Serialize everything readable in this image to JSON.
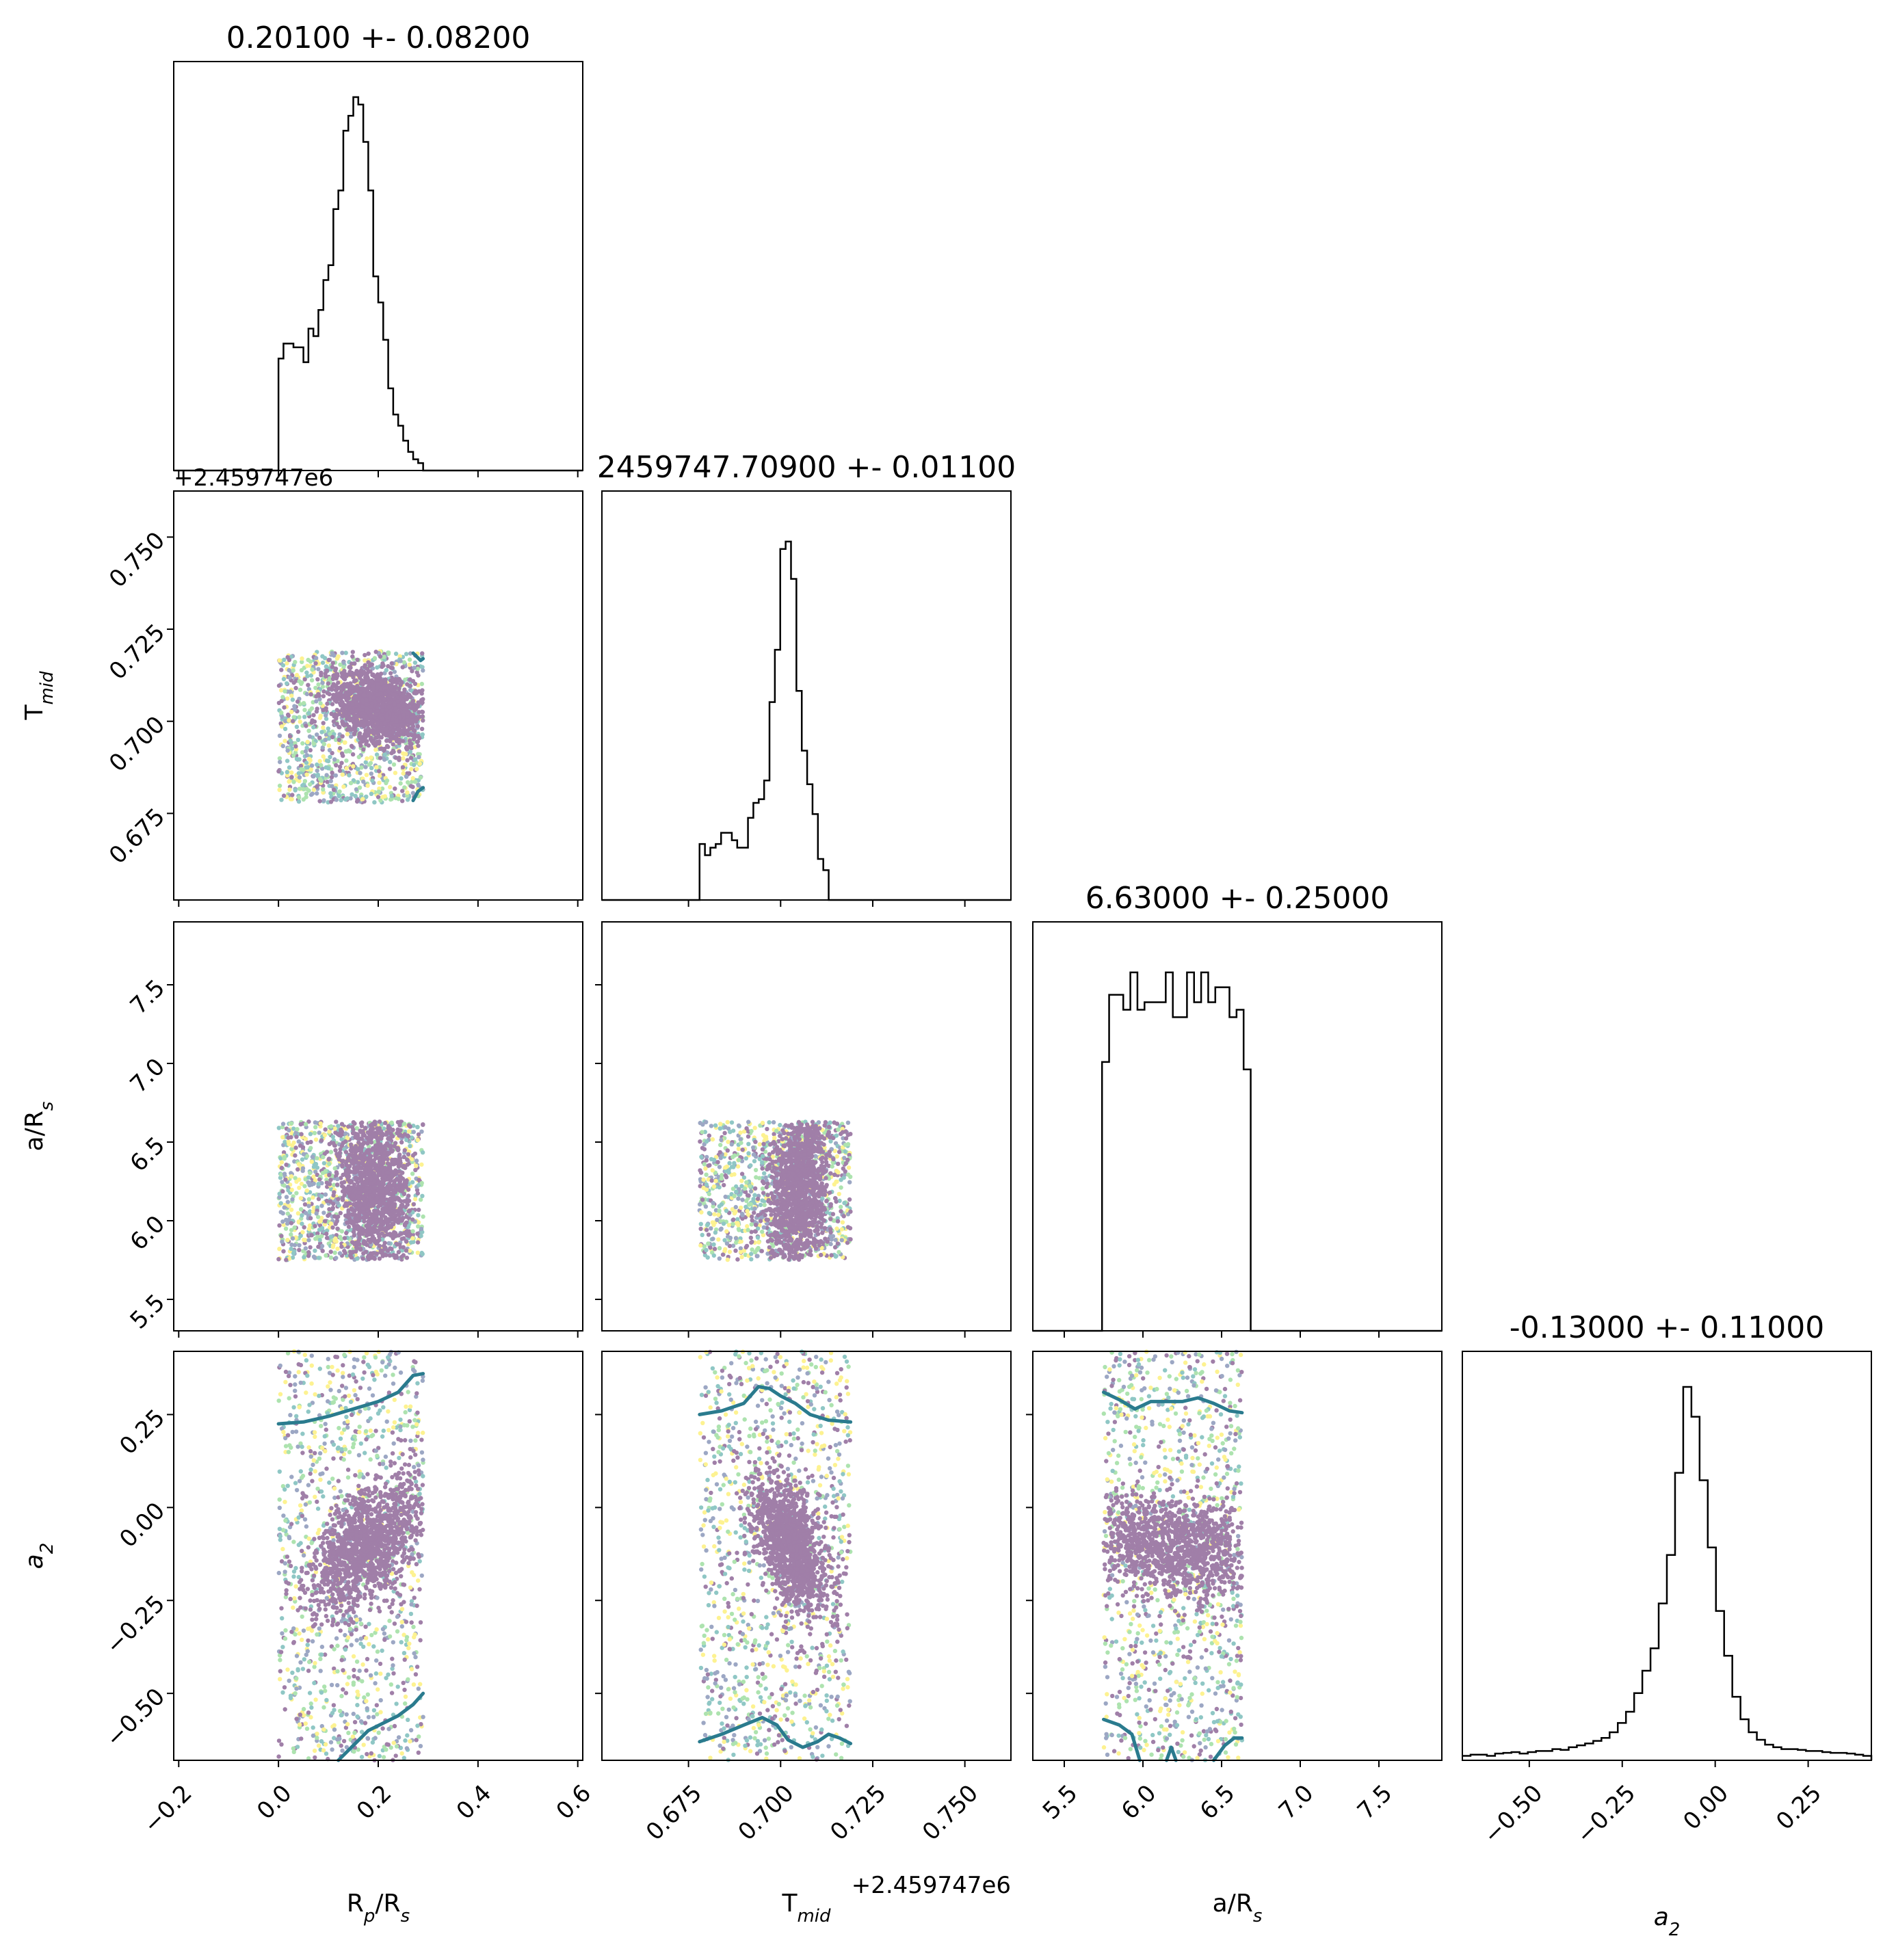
{
  "chart_data": {
    "type": "corner",
    "parameters": [
      {
        "key": "rp",
        "label": "R_p/R_s",
        "label_main": "R",
        "label_sub": "p",
        "label_tail": "/R",
        "label_sub2": "s",
        "title": "0.20100 +- 0.08200",
        "range": [
          -0.21,
          0.61
        ],
        "ticks": [
          -0.2,
          0.0,
          0.2,
          0.4,
          0.6
        ],
        "tick_labels": [
          "−0.2",
          "0.0",
          "0.2",
          "0.4",
          "0.6"
        ]
      },
      {
        "key": "tmid",
        "label": "T_mid",
        "label_main": "T",
        "label_sub": "mid",
        "label_tail": "",
        "label_sub2": "",
        "title": "2459747.70900 +- 0.01100",
        "range": [
          0.6515,
          0.7625
        ],
        "offset": "+2.459747e6",
        "ticks": [
          0.675,
          0.7,
          0.725,
          0.75
        ],
        "tick_labels": [
          "0.675",
          "0.700",
          "0.725",
          "0.750"
        ]
      },
      {
        "key": "ars",
        "label": "a/R_s",
        "label_main": "a/R",
        "label_sub": "s",
        "label_tail": "",
        "label_sub2": "",
        "title": "6.63000 +- 0.25000",
        "range": [
          5.3,
          7.9
        ],
        "ticks": [
          5.5,
          6.0,
          6.5,
          7.0,
          7.5
        ],
        "tick_labels": [
          "5.5",
          "6.0",
          "6.5",
          "7.0",
          "7.5"
        ]
      },
      {
        "key": "a2",
        "label": "a_2",
        "label_main": "a",
        "label_sub": "2",
        "label_tail": "",
        "label_sub2": "",
        "title": "-0.13000 +- 0.11000",
        "range": [
          -0.68,
          0.42
        ],
        "ticks": [
          -0.5,
          -0.25,
          0.0,
          0.25
        ],
        "tick_labels": [
          "−0.50",
          "−0.25",
          "0.00",
          "0.25"
        ]
      }
    ],
    "histograms": [
      {
        "param": "rp",
        "x_start": 0.0,
        "bin_width": 0.01,
        "counts": [
          0.3,
          0.34,
          0.34,
          0.33,
          0.33,
          0.29,
          0.38,
          0.36,
          0.43,
          0.51,
          0.55,
          0.7,
          0.75,
          0.91,
          0.95,
          1.0,
          0.98,
          0.88,
          0.75,
          0.52,
          0.45,
          0.35,
          0.22,
          0.15,
          0.12,
          0.08,
          0.05,
          0.03,
          0.02,
          0.0
        ]
      },
      {
        "param": "tmid",
        "x_start": 0.678,
        "bin_width": 0.00146,
        "counts": [
          0.15,
          0.12,
          0.14,
          0.15,
          0.18,
          0.18,
          0.16,
          0.14,
          0.14,
          0.22,
          0.26,
          0.27,
          0.32,
          0.53,
          0.67,
          0.94,
          0.96,
          0.86,
          0.56,
          0.4,
          0.31,
          0.23,
          0.11,
          0.08,
          0.0,
          0.0,
          0.0,
          0.0,
          0.0,
          0.0
        ]
      },
      {
        "param": "ars",
        "x_start": 5.74,
        "bin_width": 0.045,
        "counts": [
          0.72,
          0.9,
          0.9,
          0.86,
          0.96,
          0.86,
          0.88,
          0.88,
          0.88,
          0.96,
          0.84,
          0.84,
          0.96,
          0.88,
          0.96,
          0.88,
          0.92,
          0.92,
          0.84,
          0.86,
          0.7
        ]
      },
      {
        "param": "a2",
        "x_start": -0.68,
        "bin_width": 0.022,
        "counts": [
          0.012,
          0.015,
          0.015,
          0.012,
          0.018,
          0.02,
          0.022,
          0.018,
          0.022,
          0.025,
          0.025,
          0.03,
          0.028,
          0.035,
          0.04,
          0.045,
          0.052,
          0.06,
          0.075,
          0.1,
          0.13,
          0.18,
          0.24,
          0.3,
          0.42,
          0.55,
          0.77,
          1.0,
          0.92,
          0.75,
          0.57,
          0.4,
          0.28,
          0.17,
          0.11,
          0.075,
          0.055,
          0.042,
          0.035,
          0.03,
          0.03,
          0.028,
          0.025,
          0.025,
          0.022,
          0.02,
          0.02,
          0.018,
          0.015,
          0.012
        ]
      }
    ],
    "scatter_panels": [
      {
        "x": "rp",
        "y": "tmid",
        "x_range": [
          0.0,
          0.29
        ],
        "y_range": [
          0.678,
          0.719
        ],
        "cluster_center": [
          0.2,
          0.704
        ],
        "cluster_spread": [
          0.045,
          0.005
        ],
        "correlation": -0.3
      },
      {
        "x": "rp",
        "y": "ars",
        "x_range": [
          0.0,
          0.29
        ],
        "y_range": [
          5.75,
          6.63
        ],
        "cluster_center": [
          0.19,
          6.2
        ],
        "cluster_spread": [
          0.035,
          0.25
        ],
        "correlation": 0.0
      },
      {
        "x": "tmid",
        "y": "ars",
        "x_range": [
          0.678,
          0.719
        ],
        "y_range": [
          5.75,
          6.63
        ],
        "cluster_center": [
          0.705,
          6.2
        ],
        "cluster_spread": [
          0.004,
          0.25
        ],
        "correlation": 0.25
      },
      {
        "x": "rp",
        "y": "a2",
        "x_range": [
          0.0,
          0.29
        ],
        "y_range": [
          -0.68,
          0.42
        ],
        "cluster_center": [
          0.18,
          -0.1
        ],
        "cluster_spread": [
          0.06,
          0.09
        ],
        "correlation": 0.55
      },
      {
        "x": "tmid",
        "y": "a2",
        "x_range": [
          0.678,
          0.719
        ],
        "y_range": [
          -0.68,
          0.42
        ],
        "cluster_center": [
          0.703,
          -0.1
        ],
        "cluster_spread": [
          0.005,
          0.09
        ],
        "correlation": -0.5
      },
      {
        "x": "ars",
        "y": "a2",
        "x_range": [
          5.75,
          6.63
        ],
        "y_range": [
          -0.68,
          0.42
        ],
        "cluster_center": [
          6.2,
          -0.11
        ],
        "cluster_spread": [
          0.3,
          0.07
        ],
        "correlation": -0.2
      }
    ],
    "contour_lines": [
      {
        "x": "rp",
        "y": "a2",
        "points": [
          [
            0.0,
            0.225
          ],
          [
            0.05,
            0.23
          ],
          [
            0.1,
            0.245
          ],
          [
            0.15,
            0.265
          ],
          [
            0.2,
            0.285
          ],
          [
            0.24,
            0.31
          ],
          [
            0.27,
            0.355
          ],
          [
            0.29,
            0.36
          ]
        ]
      },
      {
        "x": "rp",
        "y": "a2",
        "points": [
          [
            0.12,
            -0.68
          ],
          [
            0.15,
            -0.64
          ],
          [
            0.18,
            -0.6
          ],
          [
            0.21,
            -0.58
          ],
          [
            0.24,
            -0.56
          ],
          [
            0.27,
            -0.53
          ],
          [
            0.29,
            -0.5
          ]
        ]
      },
      {
        "x": "tmid",
        "y": "a2",
        "points": [
          [
            0.678,
            0.25
          ],
          [
            0.684,
            0.26
          ],
          [
            0.69,
            0.28
          ],
          [
            0.694,
            0.325
          ],
          [
            0.697,
            0.32
          ],
          [
            0.7,
            0.3
          ],
          [
            0.704,
            0.28
          ],
          [
            0.708,
            0.25
          ],
          [
            0.713,
            0.235
          ],
          [
            0.719,
            0.23
          ]
        ]
      },
      {
        "x": "tmid",
        "y": "a2",
        "points": [
          [
            0.678,
            -0.63
          ],
          [
            0.684,
            -0.61
          ],
          [
            0.69,
            -0.585
          ],
          [
            0.695,
            -0.565
          ],
          [
            0.699,
            -0.585
          ],
          [
            0.702,
            -0.625
          ],
          [
            0.706,
            -0.645
          ],
          [
            0.71,
            -0.63
          ],
          [
            0.713,
            -0.61
          ],
          [
            0.716,
            -0.62
          ],
          [
            0.719,
            -0.635
          ]
        ]
      },
      {
        "x": "ars",
        "y": "a2",
        "points": [
          [
            5.75,
            0.31
          ],
          [
            5.85,
            0.29
          ],
          [
            5.95,
            0.265
          ],
          [
            6.05,
            0.285
          ],
          [
            6.15,
            0.285
          ],
          [
            6.25,
            0.285
          ],
          [
            6.35,
            0.295
          ],
          [
            6.45,
            0.28
          ],
          [
            6.55,
            0.26
          ],
          [
            6.63,
            0.255
          ]
        ]
      },
      {
        "x": "ars",
        "y": "a2",
        "points": [
          [
            5.75,
            -0.57
          ],
          [
            5.85,
            -0.585
          ],
          [
            5.93,
            -0.61
          ],
          [
            5.98,
            -0.68
          ]
        ]
      },
      {
        "x": "ars",
        "y": "a2",
        "points": [
          [
            6.15,
            -0.68
          ],
          [
            6.18,
            -0.645
          ],
          [
            6.21,
            -0.68
          ]
        ]
      },
      {
        "x": "ars",
        "y": "a2",
        "points": [
          [
            6.45,
            -0.68
          ],
          [
            6.52,
            -0.64
          ],
          [
            6.58,
            -0.62
          ],
          [
            6.63,
            -0.62
          ]
        ]
      },
      {
        "x": "rp",
        "y": "tmid",
        "points": [
          [
            0.27,
            0.7185
          ],
          [
            0.285,
            0.7165
          ],
          [
            0.29,
            0.717
          ]
        ]
      },
      {
        "x": "rp",
        "y": "tmid",
        "points": [
          [
            0.27,
            0.6785
          ],
          [
            0.28,
            0.681
          ],
          [
            0.29,
            0.682
          ]
        ]
      }
    ],
    "colors": {
      "histogram": "#000000",
      "frame": "#000000",
      "contour": "#2a7b8e",
      "scatter_main": "#440154",
      "scatter_palette": [
        "#440154",
        "#3b528b",
        "#21918c",
        "#5ec962",
        "#fde725"
      ]
    }
  }
}
